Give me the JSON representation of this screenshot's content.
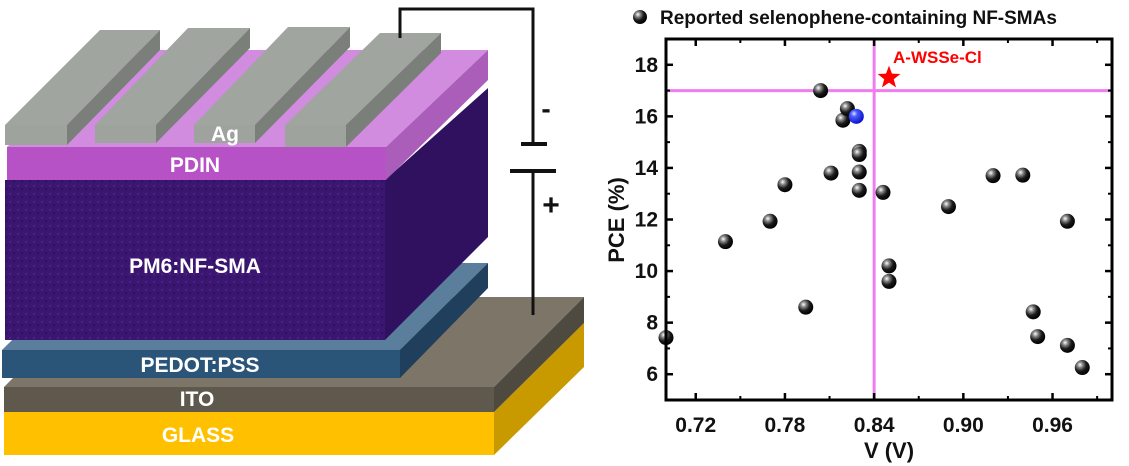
{
  "device": {
    "layers": {
      "ag": "Ag",
      "pdin": "PDIN",
      "active": "PM6:NF-SMA",
      "pedot": "PEDOT:PSS",
      "ito": "ITO",
      "glass": "GLASS"
    },
    "minus": "-",
    "plus": "+",
    "colors": {
      "glass": "#FFC000",
      "ito": "#5E584D",
      "pedot": "#2A5478",
      "active": "#3B1670",
      "pdin": "#B651C6",
      "ag": "#A0A59F"
    }
  },
  "chart_data": {
    "type": "scatter",
    "xlabel": "V (V)",
    "ylabel": "PCE (%)",
    "xlim": [
      0.7,
      1.0
    ],
    "ylim": [
      5,
      19
    ],
    "xticks": [
      "0.72",
      "0.78",
      "0.84",
      "0.90",
      "0.96"
    ],
    "xtick_values": [
      0.72,
      0.78,
      0.84,
      0.9,
      0.96
    ],
    "yticks": [
      "6",
      "8",
      "10",
      "12",
      "14",
      "16",
      "18"
    ],
    "ytick_values": [
      6,
      8,
      10,
      12,
      14,
      16,
      18
    ],
    "grid": false,
    "legend": {
      "position": "top",
      "entries": [
        "Reported selenophene-containing NF-SMAs"
      ]
    },
    "series": [
      {
        "name": "Reported selenophene-containing NF-SMAs",
        "color": "#000000",
        "points": [
          [
            0.7,
            7.42
          ],
          [
            0.74,
            11.14
          ],
          [
            0.77,
            11.93
          ],
          [
            0.78,
            13.35
          ],
          [
            0.794,
            8.6
          ],
          [
            0.804,
            17.0
          ],
          [
            0.811,
            13.8
          ],
          [
            0.819,
            15.85
          ],
          [
            0.822,
            16.3
          ],
          [
            0.83,
            14.64
          ],
          [
            0.83,
            14.52
          ],
          [
            0.83,
            13.84
          ],
          [
            0.83,
            13.13
          ],
          [
            0.846,
            13.05
          ],
          [
            0.85,
            10.2
          ],
          [
            0.85,
            9.6
          ],
          [
            0.89,
            12.5
          ],
          [
            0.92,
            13.7
          ],
          [
            0.94,
            13.72
          ],
          [
            0.97,
            11.93
          ],
          [
            0.947,
            8.42
          ],
          [
            0.95,
            7.46
          ],
          [
            0.97,
            7.12
          ],
          [
            0.98,
            6.26
          ]
        ]
      },
      {
        "color": "#1010E0",
        "points": [
          [
            0.828,
            16.0
          ]
        ]
      }
    ],
    "highlight": {
      "label": "A-WSSe-Cl",
      "x": 0.85,
      "y": 17.5,
      "color": "#FF0000",
      "marker": "star"
    },
    "reference_lines": {
      "x": 0.84,
      "y": 17.0,
      "color": "#F07CF0"
    }
  }
}
